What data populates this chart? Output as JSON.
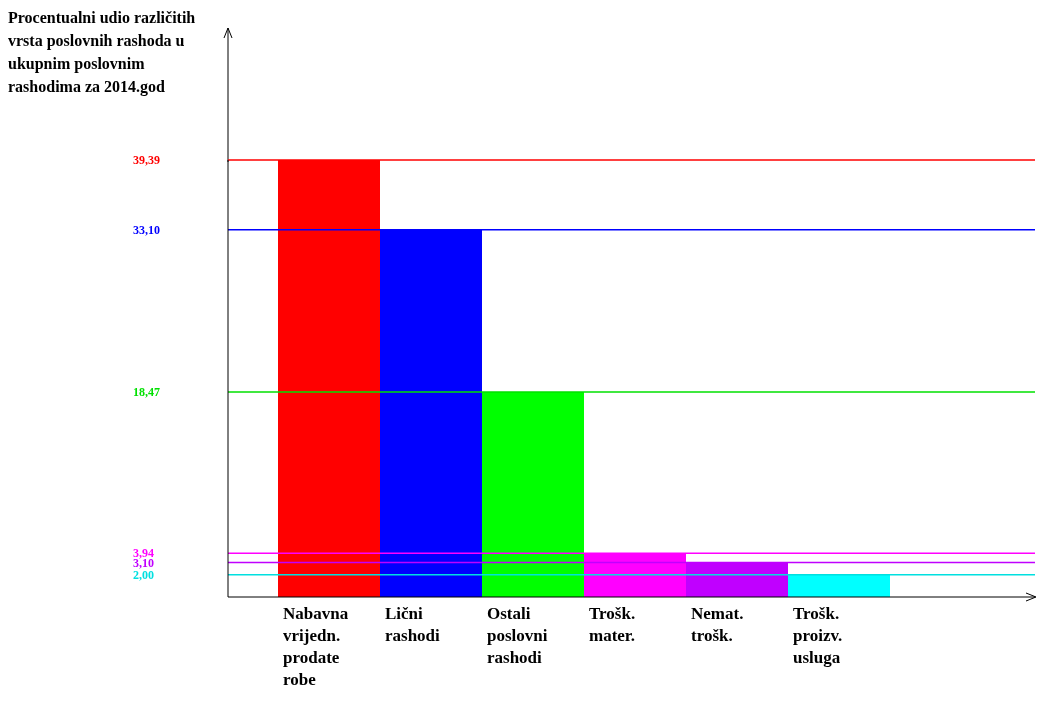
{
  "chart_data": {
    "type": "bar",
    "title": "Procentualni udio različitih vrsta poslovnih rashoda u ukupnim poslovnim rashodima za 2014.god",
    "categories": [
      "Nabavna vrijedn. prodate robe",
      "Lični rashodi",
      "Ostali poslovni rashodi",
      "Trošk. mater.",
      "Nemat. trošk.",
      "Trošk. proizv. usluga"
    ],
    "values": [
      39.39,
      33.1,
      18.47,
      3.94,
      3.1,
      2.0
    ],
    "colors": [
      "#ff0000",
      "#0000ff",
      "#00ff00",
      "#ff00ff",
      "#c000ff",
      "#00ffff"
    ],
    "ylim": [
      0,
      39.39
    ],
    "yticks": [
      {
        "value": 2.0,
        "label": "2,00"
      },
      {
        "value": 3.1,
        "label": "3,10"
      },
      {
        "value": 3.94,
        "label": "3,94"
      },
      {
        "value": 18.47,
        "label": "18,47"
      },
      {
        "value": 33.1,
        "label": "33,10"
      },
      {
        "value": 39.39,
        "label": "39,39"
      }
    ],
    "ref_lines": [
      {
        "axis": "y",
        "value": 39.39,
        "color": "#ff0000"
      },
      {
        "axis": "y",
        "value": 33.1,
        "color": "#0000ff"
      },
      {
        "axis": "y",
        "value": 18.47,
        "color": "#00e000"
      },
      {
        "axis": "y",
        "value": 3.94,
        "color": "#ff00ff"
      },
      {
        "axis": "y",
        "value": 3.1,
        "color": "#c000ff"
      },
      {
        "axis": "y",
        "value": 2.0,
        "color": "#00e0e0"
      }
    ]
  }
}
